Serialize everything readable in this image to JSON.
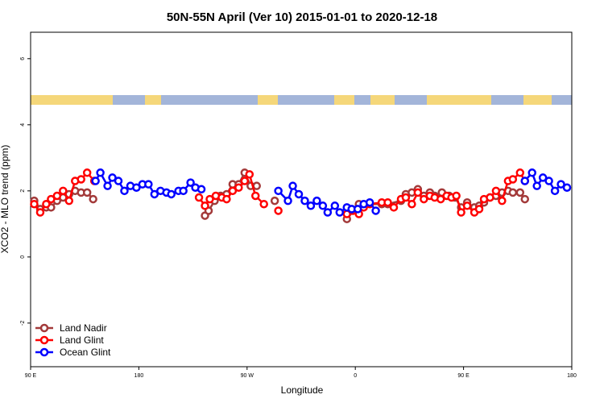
{
  "chart_data": {
    "type": "line",
    "title": "50N-55N April (Ver 10)   2015-01-01 to 2020-12-18",
    "x_label": "Longitude",
    "y_label": "XCO2 - MLO trend (ppm)",
    "xlim": [
      90,
      540
    ],
    "ylim": [
      -3.32,
      6.8
    ],
    "xticks": [
      {
        "value": 90,
        "label": "90 E"
      },
      {
        "value": 180,
        "label": "180"
      },
      {
        "value": 270,
        "label": "90 W"
      },
      {
        "value": 360,
        "label": "0"
      },
      {
        "value": 450,
        "label": "90 E"
      },
      {
        "value": 540,
        "label": "180"
      }
    ],
    "yticks": [
      -2,
      0,
      2,
      4,
      6
    ],
    "legend": "bottom-left",
    "series": [
      {
        "name": "Land Nadir",
        "color": "#a33a3a",
        "x": [
          93,
          98,
          103,
          107,
          112,
          117,
          122,
          127,
          132,
          137,
          142,
          null,
          235,
          238,
          243,
          248,
          253,
          258,
          263,
          268,
          273,
          278,
          null,
          293,
          null,
          353,
          363,
          382,
          387,
          398,
          402,
          407,
          412,
          417,
          422,
          426,
          432,
          438,
          443,
          448,
          453,
          459,
          463,
          467,
          472,
          477,
          482,
          487,
          491,
          497,
          501
        ],
        "values": [
          1.7,
          1.45,
          1.5,
          1.5,
          1.7,
          1.8,
          1.9,
          2.0,
          1.95,
          1.95,
          1.75,
          null,
          1.25,
          1.4,
          1.7,
          1.85,
          1.9,
          2.2,
          2.2,
          2.55,
          2.15,
          2.15,
          null,
          1.7,
          null,
          1.15,
          1.6,
          1.6,
          1.6,
          1.7,
          1.9,
          1.95,
          2.05,
          1.85,
          1.95,
          1.85,
          1.95,
          1.85,
          1.8,
          1.5,
          1.65,
          1.5,
          1.55,
          1.65,
          1.8,
          1.85,
          1.95,
          2.0,
          1.95,
          1.95,
          1.75
        ]
      },
      {
        "name": "Land Glint",
        "color": "#ff0000",
        "x": [
          93,
          98,
          103,
          107,
          112,
          117,
          122,
          127,
          132,
          137,
          143,
          null,
          230,
          235,
          239,
          244,
          249,
          253,
          258,
          263,
          268,
          272,
          277,
          284,
          null,
          296,
          null,
          353,
          358,
          363,
          367,
          372,
          382,
          387,
          392,
          398,
          402,
          407,
          412,
          417,
          422,
          426,
          431,
          436,
          440,
          444,
          448,
          453,
          459,
          463,
          467,
          472,
          477,
          482,
          487,
          491,
          497,
          501
        ],
        "values": [
          1.6,
          1.35,
          1.6,
          1.75,
          1.85,
          2.0,
          1.7,
          2.3,
          2.35,
          2.55,
          2.3,
          null,
          1.8,
          1.55,
          1.75,
          1.85,
          1.8,
          1.75,
          2.0,
          2.1,
          2.3,
          2.5,
          1.85,
          1.6,
          null,
          1.4,
          null,
          1.3,
          1.4,
          1.3,
          1.5,
          1.6,
          1.65,
          1.65,
          1.5,
          1.75,
          1.8,
          1.6,
          1.95,
          1.75,
          1.85,
          1.8,
          1.75,
          1.85,
          1.8,
          1.85,
          1.35,
          1.55,
          1.35,
          1.45,
          1.75,
          1.8,
          2.0,
          1.7,
          2.3,
          2.35,
          2.55,
          2.3
        ]
      },
      {
        "name": "Ocean Glint",
        "color": "#0000ff",
        "x": [
          144,
          148,
          154,
          158,
          163,
          168,
          173,
          178,
          183,
          188,
          193,
          198,
          203,
          207,
          213,
          217,
          223,
          227,
          232,
          null,
          296,
          304,
          308,
          313,
          318,
          323,
          328,
          333,
          337,
          343,
          347,
          353,
          357,
          362,
          367,
          372,
          377,
          null,
          501,
          507,
          511,
          516,
          521,
          526,
          531,
          536
        ],
        "values": [
          2.3,
          2.55,
          2.15,
          2.4,
          2.3,
          2.0,
          2.15,
          2.1,
          2.2,
          2.2,
          1.9,
          2.0,
          1.95,
          1.9,
          2.0,
          2.0,
          2.25,
          2.1,
          2.05,
          null,
          2.0,
          1.7,
          2.15,
          1.9,
          1.7,
          1.55,
          1.7,
          1.55,
          1.35,
          1.55,
          1.35,
          1.5,
          1.45,
          1.45,
          1.6,
          1.65,
          1.4,
          null,
          2.3,
          2.55,
          2.15,
          2.4,
          2.3,
          2.0,
          2.2,
          2.1
        ]
      }
    ]
  }
}
